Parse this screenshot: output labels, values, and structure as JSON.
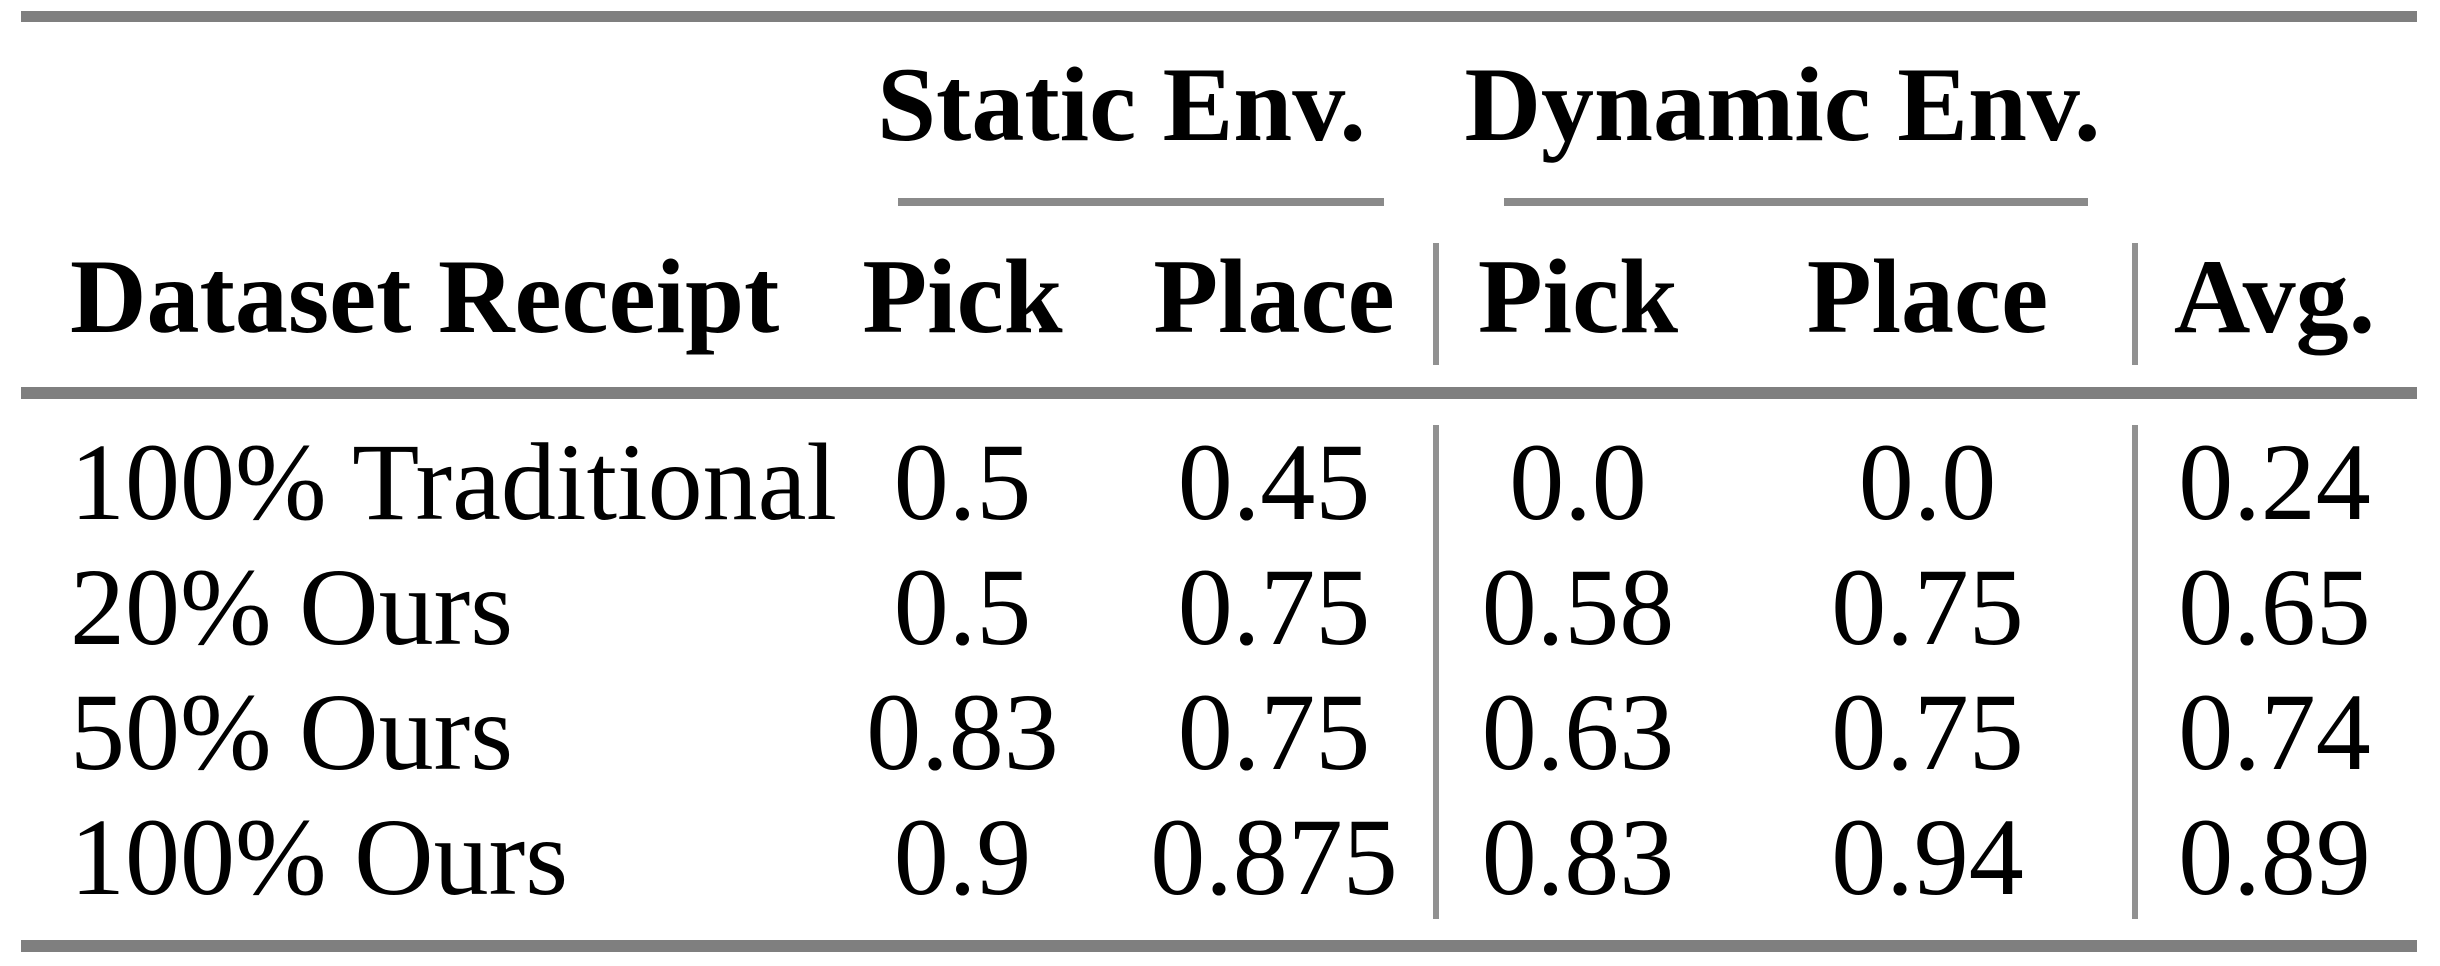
{
  "table": {
    "group_headers": {
      "static": "Static Env.",
      "dynamic": "Dynamic Env."
    },
    "columns": {
      "row_label": "Dataset Receipt",
      "static_pick": "Pick",
      "static_place": "Place",
      "dynamic_pick": "Pick",
      "dynamic_place": "Place",
      "avg": "Avg."
    },
    "rows": [
      {
        "label": "100% Traditional",
        "static_pick": "0.5",
        "static_place": "0.45",
        "dynamic_pick": "0.0",
        "dynamic_place": "0.0",
        "avg": "0.24"
      },
      {
        "label": "20% Ours",
        "static_pick": "0.5",
        "static_place": "0.75",
        "dynamic_pick": "0.58",
        "dynamic_place": "0.75",
        "avg": "0.65"
      },
      {
        "label": "50% Ours",
        "static_pick": "0.83",
        "static_place": "0.75",
        "dynamic_pick": "0.63",
        "dynamic_place": "0.75",
        "avg": "0.74"
      },
      {
        "label": "100% Ours",
        "static_pick": "0.9",
        "static_place": "0.875",
        "dynamic_pick": "0.83",
        "dynamic_place": "0.94",
        "avg": "0.89"
      }
    ],
    "colors": {
      "rule": "#7f7f7f",
      "cmidrule": "#8a8a8a",
      "vertical_rule": "#919191",
      "text": "#000000",
      "background": "#ffffff"
    }
  },
  "chart_data": {
    "type": "table",
    "columns": [
      "Dataset Receipt",
      "Static Env. Pick",
      "Static Env. Place",
      "Dynamic Env. Pick",
      "Dynamic Env. Place",
      "Avg."
    ],
    "rows": [
      [
        "100% Traditional",
        0.5,
        0.45,
        0.0,
        0.0,
        0.24
      ],
      [
        "20% Ours",
        0.5,
        0.75,
        0.58,
        0.75,
        0.65
      ],
      [
        "50% Ours",
        0.83,
        0.75,
        0.63,
        0.75,
        0.74
      ],
      [
        "100% Ours",
        0.9,
        0.875,
        0.83,
        0.94,
        0.89
      ]
    ]
  }
}
